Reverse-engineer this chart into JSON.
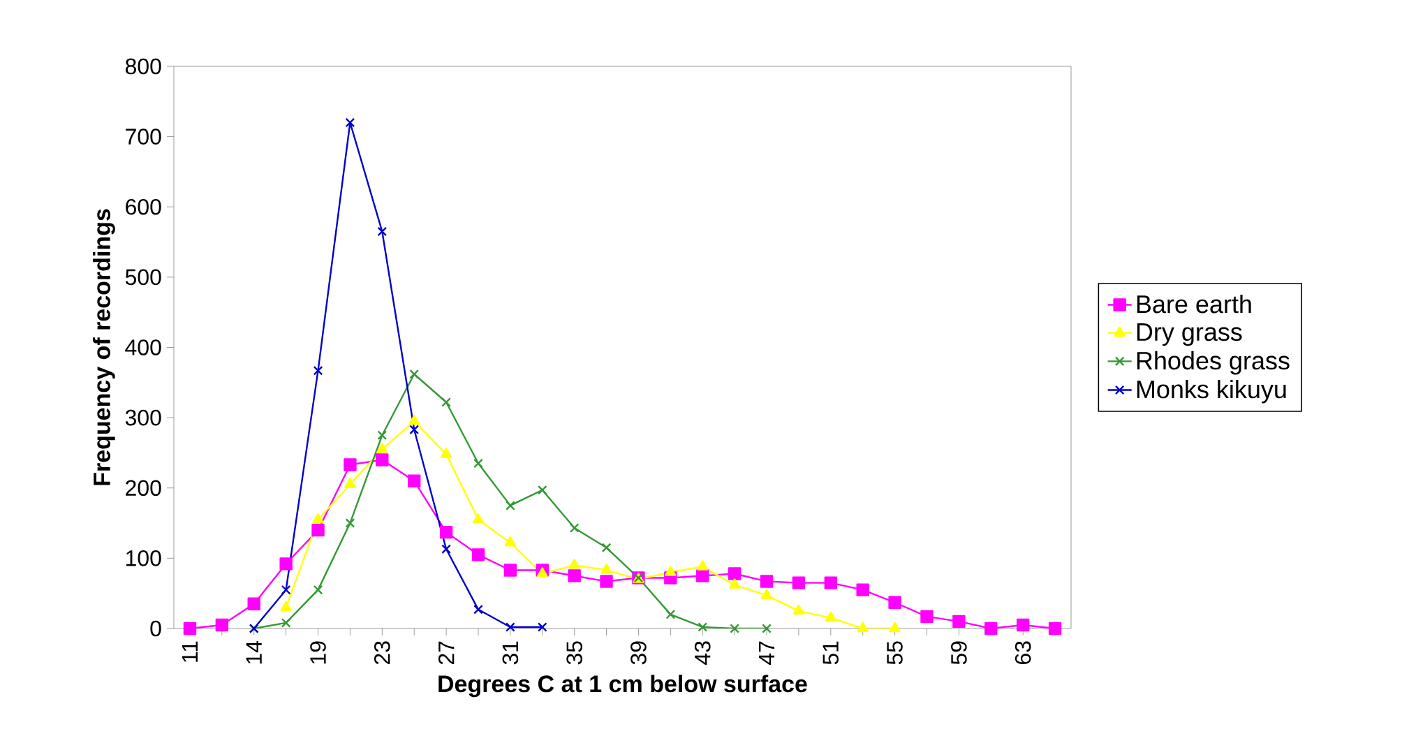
{
  "chart_data": {
    "type": "line",
    "xlabel": "Degrees C at 1 cm below surface",
    "ylabel": "Frequency of recordings",
    "categories": [
      "11",
      null,
      "14",
      null,
      "19",
      null,
      "23",
      null,
      "27",
      null,
      "31",
      null,
      "35",
      null,
      "39",
      null,
      "43",
      null,
      "47",
      null,
      "51",
      null,
      "55",
      null,
      "59",
      null,
      "63",
      null
    ],
    "series": [
      {
        "name": "Bare earth",
        "color": "#ff00ff",
        "marker": "square",
        "values": [
          0,
          5,
          35,
          92,
          140,
          233,
          240,
          210,
          137,
          105,
          83,
          83,
          75,
          67,
          72,
          72,
          75,
          78,
          67,
          65,
          65,
          55,
          37,
          17,
          10,
          0,
          5,
          0
        ]
      },
      {
        "name": "Dry grass",
        "color": "#ffff00",
        "marker": "triangle",
        "values": [
          null,
          null,
          null,
          30,
          155,
          205,
          255,
          295,
          248,
          155,
          122,
          78,
          90,
          83,
          70,
          80,
          88,
          62,
          47,
          25,
          15,
          0,
          0,
          null,
          null,
          null,
          null,
          null
        ]
      },
      {
        "name": "Rhodes grass",
        "color": "#339933",
        "marker": "cross",
        "values": [
          null,
          null,
          0,
          8,
          55,
          150,
          275,
          362,
          322,
          235,
          175,
          197,
          143,
          115,
          72,
          20,
          2,
          0,
          0,
          null,
          null,
          null,
          null,
          null,
          null,
          null,
          null,
          null
        ]
      },
      {
        "name": "Monks kikuyu",
        "color": "#0000cc",
        "marker": "cross",
        "values": [
          null,
          null,
          0,
          55,
          367,
          720,
          565,
          283,
          113,
          27,
          2,
          2,
          null,
          null,
          null,
          null,
          null,
          null,
          null,
          null,
          null,
          null,
          null,
          null,
          null,
          null,
          null,
          null
        ]
      }
    ],
    "ylim": [
      0,
      800
    ],
    "yticks": [
      0,
      100,
      200,
      300,
      400,
      500,
      600,
      700,
      800
    ],
    "grid": false,
    "legend": "right"
  }
}
